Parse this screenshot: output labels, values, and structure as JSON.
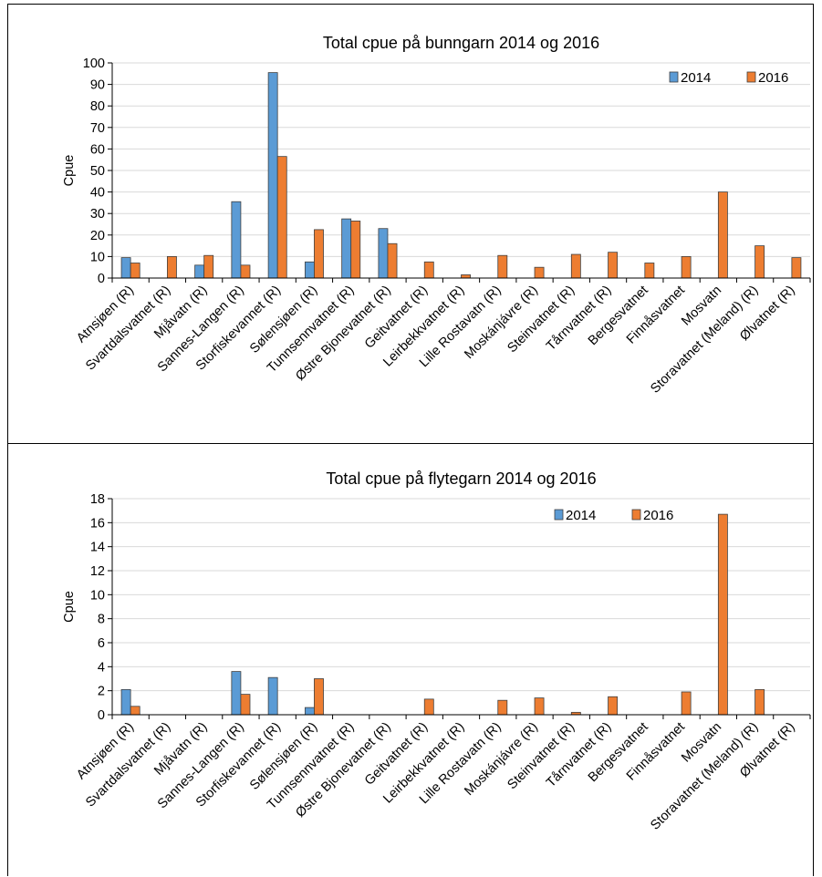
{
  "colors": {
    "2014": "#5b9bd5",
    "2016": "#ed7d31",
    "grid": "#d9d9d9",
    "axis": "#000000"
  },
  "legend": [
    "2014",
    "2016"
  ],
  "chart_data": [
    {
      "type": "bar",
      "title": "Total cpue på bunngarn  2014 og 2016",
      "xlabel": "",
      "ylabel": "Cpue",
      "ylim": [
        0,
        100
      ],
      "yticks": [
        0,
        10,
        20,
        30,
        40,
        50,
        60,
        70,
        80,
        90,
        100
      ],
      "grid": true,
      "legend_position": "top-right",
      "categories": [
        "Atnsjøen (R)",
        "Svartdalsvatnet (R)",
        "Mjåvatn (R)",
        "Sannes-Langen (R)",
        "Storfiskevannet (R)",
        "Sølensjøen (R)",
        "Tunnsennvatnet (R)",
        "Østre Bjonevatnet (R)",
        "Geitvatnet (R)",
        "Leirbekkvatnet (R)",
        "Lille Rostavatn (R)",
        "Moskánjávre (R)",
        "Steinvatnet (R)",
        "Tårnvatnet (R)",
        "Bergesvatnet",
        "Finnåsvatnet",
        "Mosvatn",
        "Storavatnet (Meland) (R)",
        "Ølvatnet (R)"
      ],
      "series": [
        {
          "name": "2014",
          "values": [
            9.5,
            null,
            6,
            35.5,
            95.5,
            7.5,
            27.5,
            23,
            null,
            null,
            null,
            null,
            null,
            null,
            null,
            null,
            null,
            null,
            null
          ]
        },
        {
          "name": "2016",
          "values": [
            7,
            10,
            10.5,
            6,
            56.5,
            22.5,
            26.5,
            16,
            7.5,
            1.5,
            10.5,
            5,
            11,
            12,
            7,
            10,
            40,
            15,
            9.5
          ]
        }
      ]
    },
    {
      "type": "bar",
      "title": "Total cpue på flytegarn  2014 og 2016",
      "xlabel": "",
      "ylabel": "Cpue",
      "ylim": [
        0,
        18
      ],
      "yticks": [
        0,
        2,
        4,
        6,
        8,
        10,
        12,
        14,
        16,
        18
      ],
      "grid": true,
      "legend_position": "top-right",
      "categories": [
        "Atnsjøen (R)",
        "Svartdalsvatnet (R)",
        "Mjåvatn (R)",
        "Sannes-Langen (R)",
        "Storfiskevannet (R)",
        "Sølensjøen (R)",
        "Tunnsennvatnet (R)",
        "Østre Bjonevatnet (R)",
        "Geitvatnet (R)",
        "Leirbekkvatnet (R)",
        "Lille Rostavatn (R)",
        "Moskánjávre (R)",
        "Steinvatnet (R)",
        "Tårnvatnet (R)",
        "Bergesvatnet",
        "Finnåsvatnet",
        "Mosvatn",
        "Storavatnet (Meland) (R)",
        "Ølvatnet (R)"
      ],
      "series": [
        {
          "name": "2014",
          "values": [
            2.1,
            null,
            null,
            3.6,
            3.1,
            0.6,
            null,
            null,
            null,
            null,
            null,
            null,
            null,
            null,
            null,
            null,
            null,
            null,
            null
          ]
        },
        {
          "name": "2016",
          "values": [
            0.7,
            null,
            null,
            1.7,
            null,
            3.0,
            null,
            null,
            1.3,
            null,
            1.2,
            1.4,
            0.2,
            1.5,
            null,
            1.9,
            16.7,
            2.1,
            null
          ]
        }
      ]
    }
  ]
}
